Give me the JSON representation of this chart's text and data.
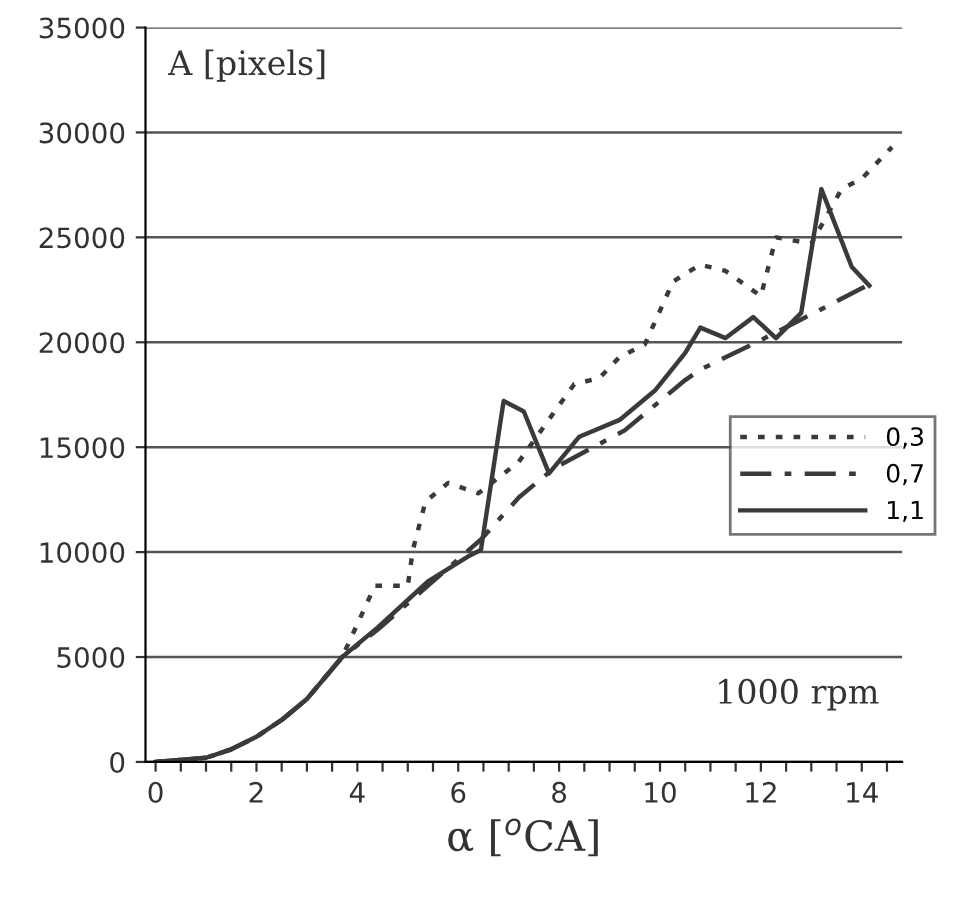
{
  "chart_data": {
    "type": "line",
    "xlabel": "α [$^{o}$CA]",
    "annotations": [
      "A [pixels]",
      "1000 rpm"
    ],
    "series": [
      {
        "name": "0,3",
        "color": "#3a3a3a",
        "line_style": "dotted",
        "x": [
          0,
          1,
          1.5,
          2,
          2.5,
          3,
          3.7,
          4.35,
          5.0,
          5.1,
          5.35,
          5.8,
          6.4,
          7.2,
          8.0,
          8.3,
          8.8,
          9.2,
          9.7,
          10.26,
          10.8,
          11.3,
          12.0,
          12.3,
          13.0,
          13.6,
          14.0,
          14.6
        ],
        "values": [
          0,
          200,
          600,
          1200,
          2000,
          3000,
          5000,
          8400,
          8400,
          10100,
          12400,
          13300,
          12800,
          14300,
          17000,
          18000,
          18300,
          19300,
          19900,
          22900,
          23700,
          23400,
          22200,
          25000,
          24700,
          27300,
          27800,
          29300
        ]
      },
      {
        "name": "0,7",
        "color": "#3a3a3a",
        "line_style": "dashdot",
        "x": [
          0,
          1,
          1.5,
          2,
          2.5,
          3,
          3.7,
          4.4,
          5.4,
          6.45,
          7.2,
          7.9,
          9.3,
          10.5,
          10.8,
          12.0,
          13.3,
          14.1
        ],
        "values": [
          0,
          200,
          600,
          1200,
          2000,
          3000,
          5000,
          6300,
          8400,
          10600,
          12600,
          14000,
          15800,
          18200,
          18700,
          20100,
          21700,
          22700
        ]
      },
      {
        "name": "1,1",
        "color": "#3a3a3a",
        "line_style": "solid",
        "x": [
          0,
          1,
          1.5,
          2,
          2.5,
          3,
          3.7,
          4.4,
          5.4,
          6.2,
          6.45,
          6.9,
          7.3,
          7.8,
          8.4,
          9.2,
          9.9,
          10.5,
          10.8,
          11.3,
          11.85,
          12.3,
          12.8,
          13.2,
          13.8,
          14.15
        ],
        "values": [
          0,
          200,
          600,
          1200,
          2000,
          3000,
          5000,
          6400,
          8600,
          9800,
          10100,
          17200,
          16700,
          13750,
          15500,
          16300,
          17700,
          19500,
          20700,
          20200,
          21200,
          20200,
          21400,
          27300,
          23600,
          22700
        ]
      }
    ],
    "xlim": [
      -0.2,
      14.8
    ],
    "ylim": [
      0,
      35000
    ],
    "xticks": [
      0,
      {
        "value": 0.5,
        "label": null
      },
      {
        "value": 1,
        "label": null
      },
      {
        "value": 1.5,
        "label": null
      },
      2,
      {
        "value": 2.5,
        "label": null
      },
      {
        "value": 3,
        "label": null
      },
      {
        "value": 3.5,
        "label": null
      },
      4,
      {
        "value": 4.5,
        "label": null
      },
      {
        "value": 5,
        "label": null
      },
      {
        "value": 5.5,
        "label": null
      },
      6,
      {
        "value": 6.5,
        "label": null
      },
      {
        "value": 7,
        "label": null
      },
      {
        "value": 7.5,
        "label": null
      },
      8,
      {
        "value": 8.5,
        "label": null
      },
      {
        "value": 9,
        "label": null
      },
      {
        "value": 9.5,
        "label": null
      },
      10,
      {
        "value": 10.5,
        "label": null
      },
      {
        "value": 11,
        "label": null
      },
      {
        "value": 11.5,
        "label": null
      },
      12,
      {
        "value": 12.5,
        "label": null
      },
      {
        "value": 13,
        "label": null
      },
      {
        "value": 13.5,
        "label": null
      },
      14,
      {
        "value": 14.5,
        "label": null
      }
    ],
    "yticks": [
      0,
      5000,
      10000,
      15000,
      20000,
      25000,
      30000,
      35000
    ],
    "grid": "y",
    "legend": "right",
    "marker": "none"
  }
}
